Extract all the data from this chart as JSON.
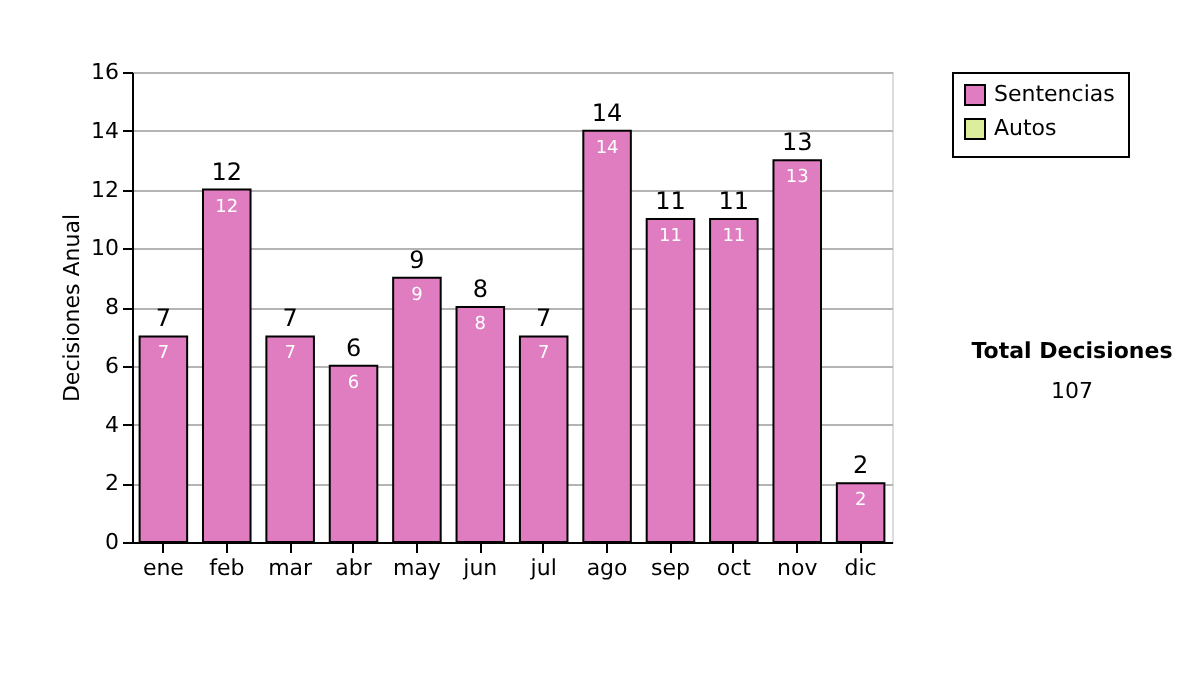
{
  "chart_data": {
    "type": "bar",
    "stacked": true,
    "ylabel": "Decisiones Anual",
    "categories": [
      "ene",
      "feb",
      "mar",
      "abr",
      "may",
      "jun",
      "jul",
      "ago",
      "sep",
      "oct",
      "nov",
      "dic"
    ],
    "series": [
      {
        "name": "Sentencias",
        "color": "#e07cc0",
        "values": [
          7,
          12,
          7,
          6,
          9,
          8,
          7,
          14,
          11,
          11,
          13,
          2
        ],
        "value_labels": [
          "7",
          "12",
          "7",
          "6",
          "9",
          "8",
          "7",
          "14",
          "11",
          "11",
          "13",
          "2"
        ]
      },
      {
        "name": "Autos",
        "color": "#dcee9c",
        "values": [
          0,
          0,
          0,
          0,
          0,
          0,
          0,
          0,
          0,
          0,
          0,
          0
        ]
      }
    ],
    "totals": [
      "7",
      "12",
      "7",
      "6",
      "9",
      "8",
      "7",
      "14",
      "11",
      "11",
      "13",
      "2"
    ],
    "ylim": [
      0,
      16
    ],
    "yticks": [
      0,
      2,
      4,
      6,
      8,
      10,
      12,
      14,
      16
    ],
    "grid": "y",
    "legend": "right",
    "annotations": [
      "Total Decisiones",
      "107"
    ]
  }
}
